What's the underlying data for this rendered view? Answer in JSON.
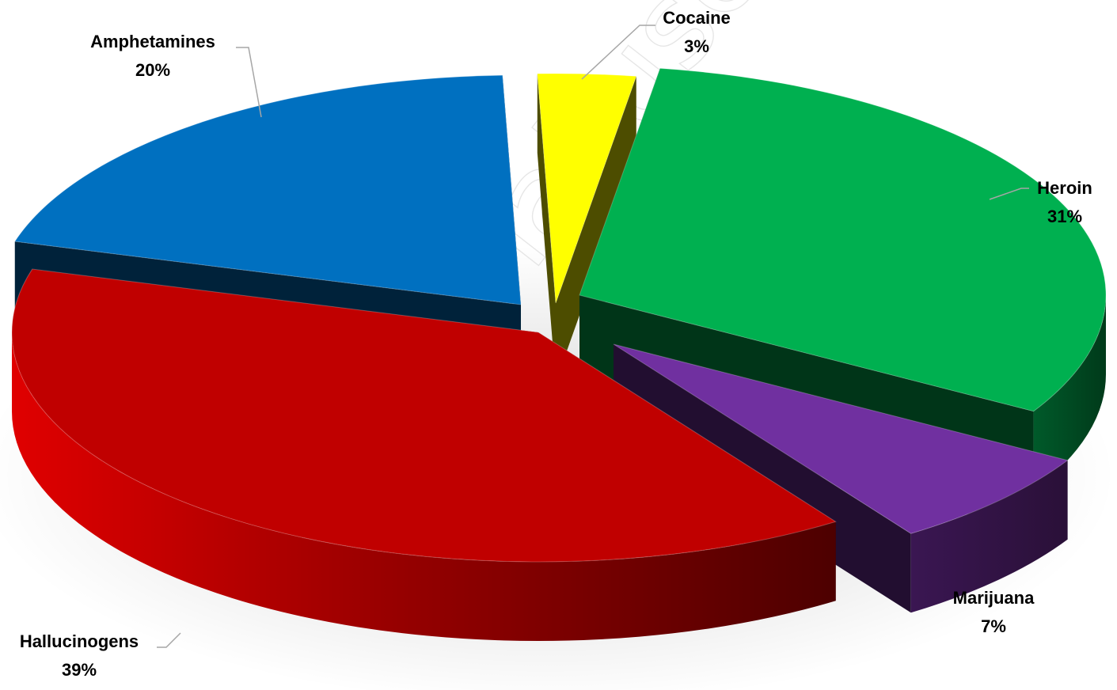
{
  "chart_data": {
    "type": "pie",
    "style": "3d-exploded",
    "title": "",
    "slices": [
      {
        "label": "Cocaine",
        "value": 3,
        "value_label": "3%",
        "color": "#ffff00"
      },
      {
        "label": "Heroin",
        "value": 31,
        "value_label": "31%",
        "color": "#00b050"
      },
      {
        "label": "Marijuana",
        "value": 7,
        "value_label": "7%",
        "color": "#7030a0"
      },
      {
        "label": "Hallucinogens",
        "value": 39,
        "value_label": "39%",
        "color": "#c00000"
      },
      {
        "label": "Amphetamines",
        "value": 20,
        "value_label": "20%",
        "color": "#0070c0"
      }
    ],
    "legend": "none",
    "data_labels": "outside with leader lines"
  }
}
